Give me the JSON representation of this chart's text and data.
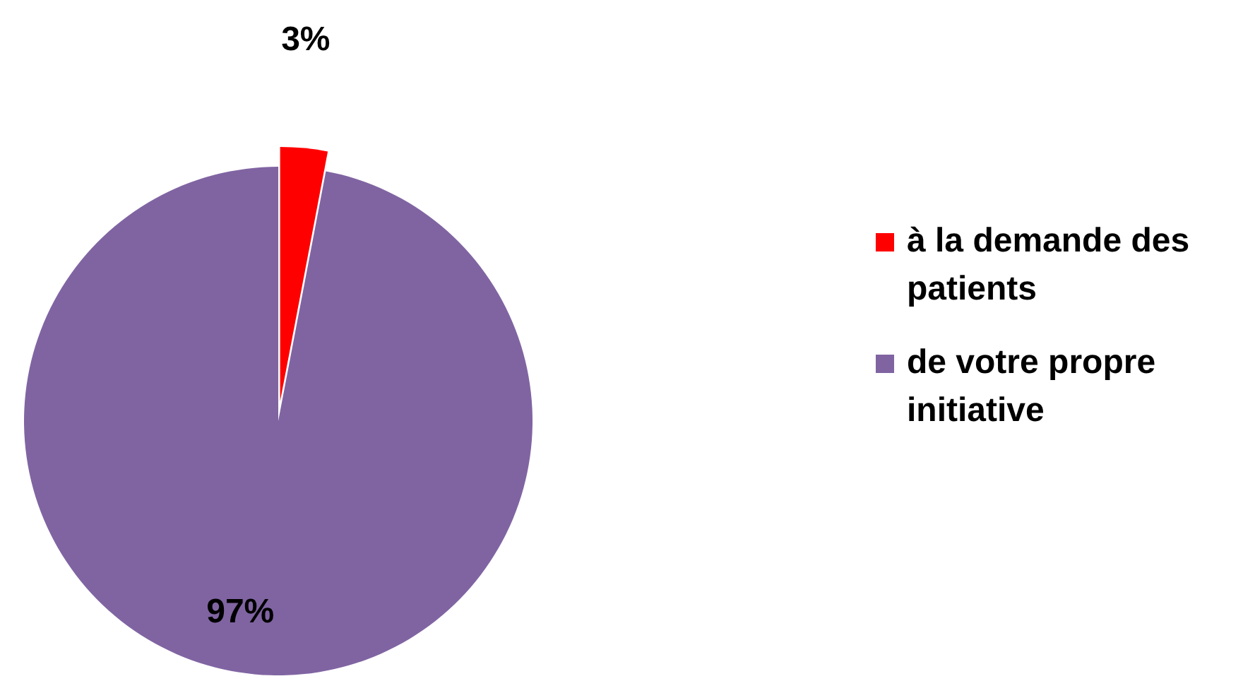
{
  "chart_data": {
    "type": "pie",
    "categories": [
      "à la demande des patients",
      "de votre propre initiative"
    ],
    "values": [
      3,
      97
    ],
    "colors": [
      "#ff0000",
      "#8064a2"
    ],
    "value_labels": [
      "3%",
      "97%"
    ],
    "legend": "right"
  }
}
